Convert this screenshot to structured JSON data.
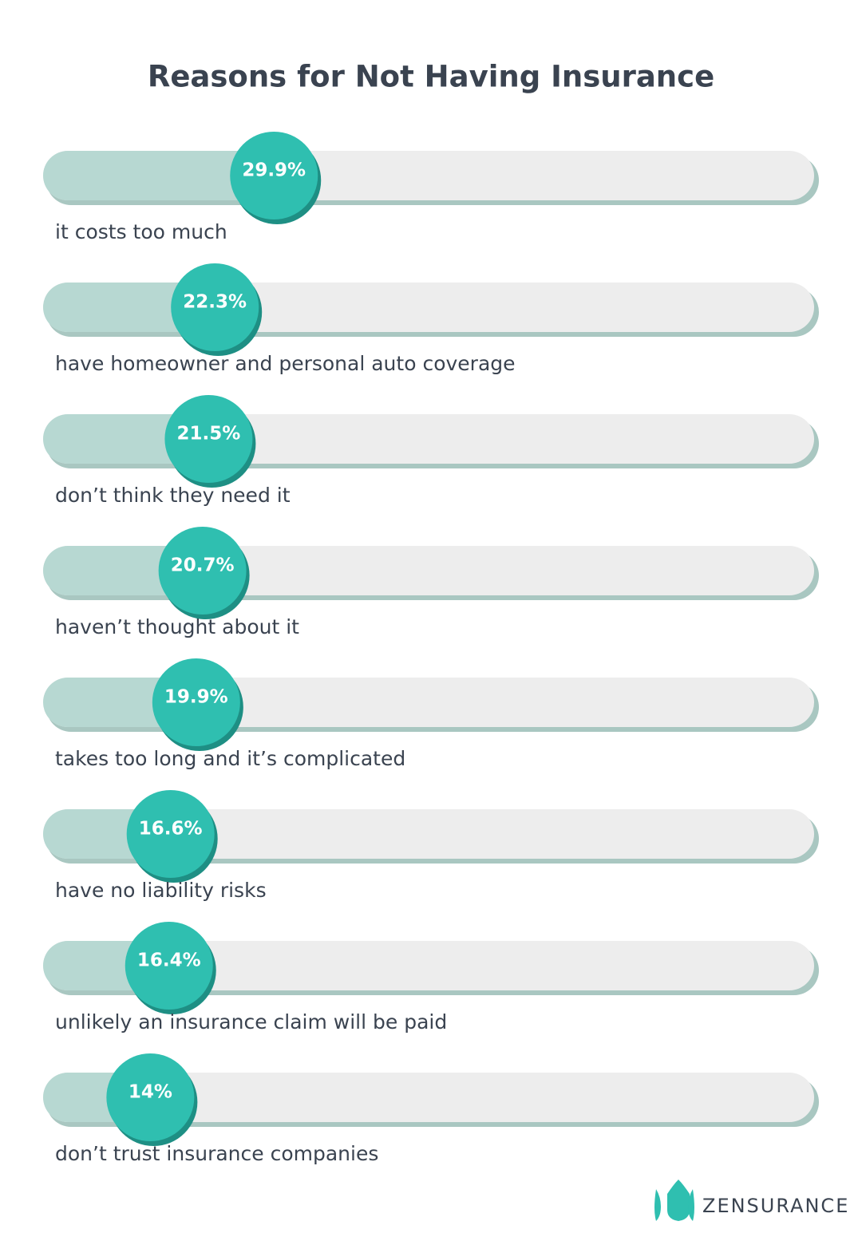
{
  "chart_data": {
    "type": "bar",
    "title": "Reasons for Not Having Insurance",
    "categories": [
      "it costs too much",
      "have homeowner and personal auto coverage",
      "don’t think they need it",
      "haven’t thought about it",
      "takes too long and it’s complicated",
      "have no liability risks",
      "unlikely an insurance claim will be paid",
      "don’t trust insurance companies"
    ],
    "values": [
      29.9,
      22.3,
      21.5,
      20.7,
      19.9,
      16.6,
      16.4,
      14
    ],
    "value_labels": [
      "29.9%",
      "22.3%",
      "21.5%",
      "20.7%",
      "19.9%",
      "16.6%",
      "16.4%",
      "14%"
    ],
    "xlim": [
      0,
      100
    ],
    "color": "#2fbfb0",
    "track_color": "#ededed",
    "fill_color": "#b7d8d2"
  },
  "brand": "ZENSURANCE"
}
